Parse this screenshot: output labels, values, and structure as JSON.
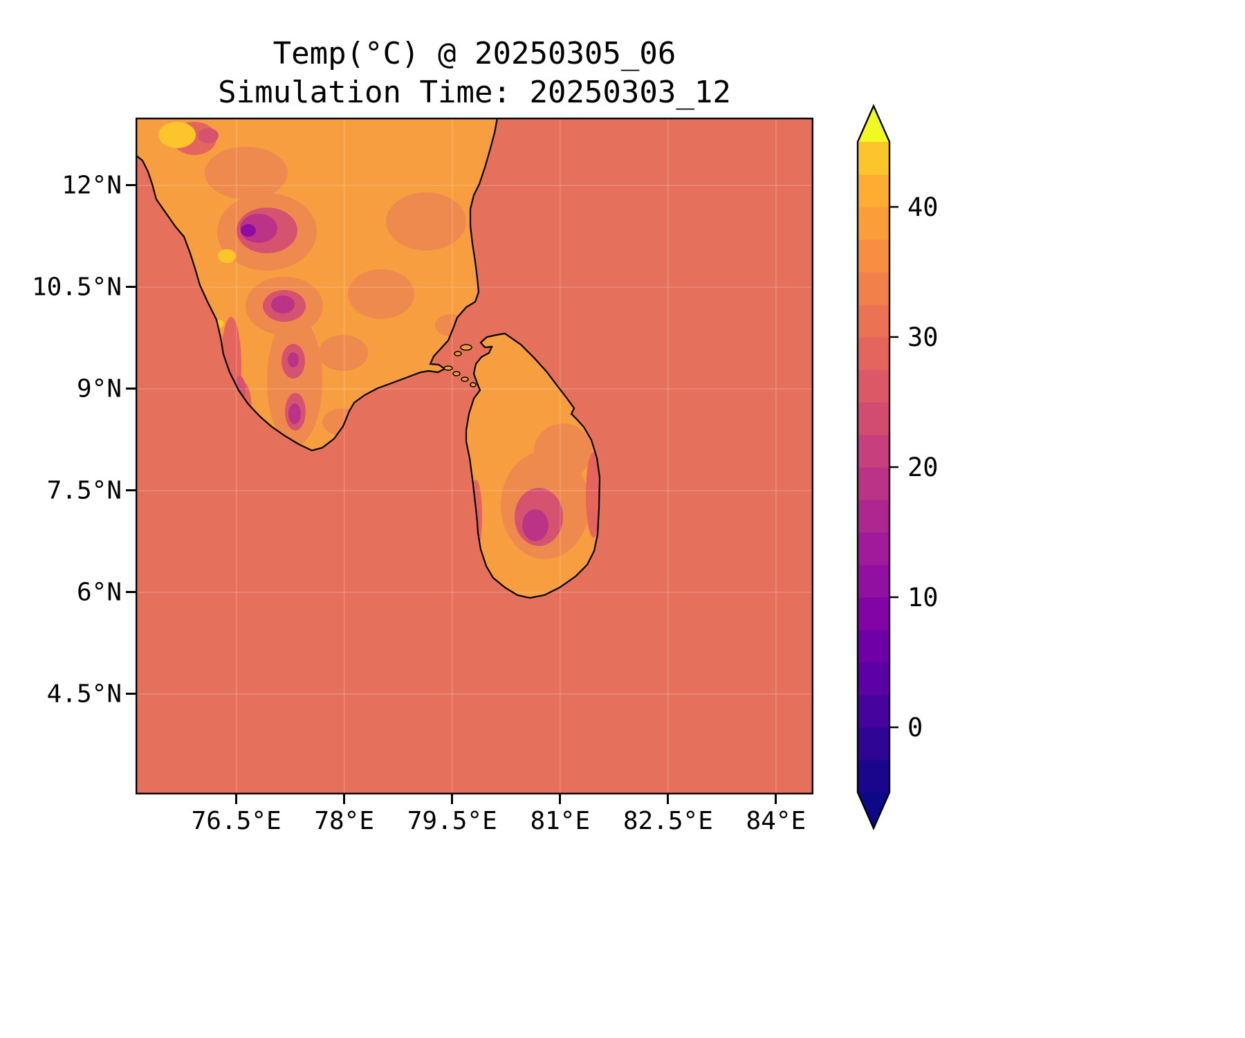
{
  "figure": {
    "title": "Temp(°C) @ 20250305_06",
    "subtitle": "Simulation Time: 20250303_12"
  },
  "chart_data": {
    "type": "heatmap",
    "title": "Temp(°C) @ 20250305_06",
    "subtitle": "Simulation Time: 20250303_12",
    "variable": "Temp",
    "units": "°C",
    "valid_time": "20250305_06",
    "simulation_time": "20250303_12",
    "map_region": "South India and Sri Lanka",
    "x_axis": {
      "range": [
        75.1,
        84.52
      ],
      "ticks": [
        {
          "value": 76.5,
          "label": "76.5°E"
        },
        {
          "value": 78,
          "label": "78°E"
        },
        {
          "value": 79.5,
          "label": "79.5°E"
        },
        {
          "value": 81,
          "label": "81°E"
        },
        {
          "value": 82.5,
          "label": "82.5°E"
        },
        {
          "value": 84,
          "label": "84°E"
        }
      ]
    },
    "y_axis": {
      "range": [
        3.02,
        13.0
      ],
      "ticks": [
        {
          "value": 12,
          "label": "12°N"
        },
        {
          "value": 10.5,
          "label": "10.5°N"
        },
        {
          "value": 9,
          "label": "9°N"
        },
        {
          "value": 7.5,
          "label": "7.5°N"
        },
        {
          "value": 6,
          "label": "6°N"
        },
        {
          "value": 4.5,
          "label": "4.5°N"
        }
      ]
    },
    "colorbar": {
      "colormap": "plasma",
      "extend": "both",
      "range": [
        -5,
        45
      ],
      "level_step": 2.5,
      "ticks": [
        {
          "value": 40,
          "label": "40"
        },
        {
          "value": 30,
          "label": "30"
        },
        {
          "value": 20,
          "label": "20"
        },
        {
          "value": 10,
          "label": "10"
        },
        {
          "value": 0,
          "label": "0"
        }
      ],
      "band_colors": [
        "#19068c",
        "#2f0596",
        "#47039d",
        "#5c01a6",
        "#6f00a8",
        "#8104a7",
        "#9110a2",
        "#a01a9b",
        "#ae2791",
        "#bb3387",
        "#c73f7c",
        "#d24b71",
        "#dc5867",
        "#e4655d",
        "#ec7254",
        "#f2804b",
        "#f78e42",
        "#fb9d39",
        "#fdad31",
        "#fcc52b"
      ],
      "under_color": "#0d0887",
      "over_color": "#f0f921"
    },
    "regions": [
      {
        "name": "ocean",
        "approx_temp_c": 29,
        "color": "#e5705b"
      },
      {
        "name": "land-interior",
        "approx_temp_c": 35,
        "color": "#f79e41"
      },
      {
        "name": "coastal-plains",
        "approx_temp_c": 32,
        "color": "#ef8a4e"
      },
      {
        "name": "coast-strip",
        "approx_temp_c": 29,
        "color": "#e4655d"
      },
      {
        "name": "ghats-foothills",
        "approx_temp_c": 24,
        "color": "#d5536f"
      },
      {
        "name": "highlands",
        "approx_temp_c": 19,
        "color": "#bb3387"
      },
      {
        "name": "highland-cold-core",
        "approx_temp_c": 12,
        "color": "#8e0ca4"
      },
      {
        "name": "hot-spot",
        "approx_temp_c": 39,
        "color": "#fbc52b"
      }
    ]
  }
}
